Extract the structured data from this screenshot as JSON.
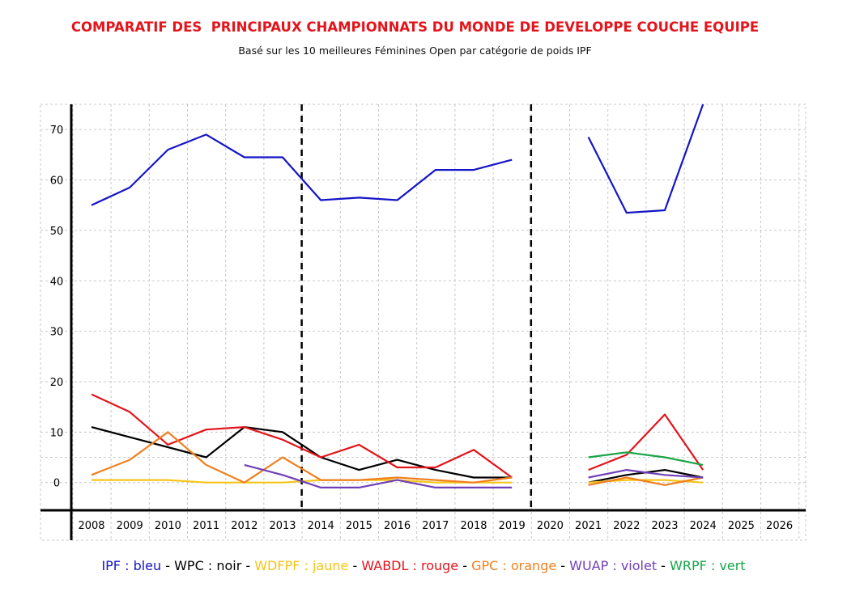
{
  "chart_data": {
    "type": "line",
    "title": "COMPARATIF DES  PRINCIPAUX CHAMPIONNATS DU MONDE DE DEVELOPPE COUCHE EQUIPE",
    "subtitle": "Basé sur les 10 meilleures Féminines Open par catégorie de poids IPF",
    "categories": [
      "2008",
      "2009",
      "2010",
      "2011",
      "2012",
      "2013",
      "2014",
      "2015",
      "2016",
      "2017",
      "2018",
      "2019",
      "2020",
      "2021",
      "2022",
      "2023",
      "2024",
      "2025",
      "2026"
    ],
    "y_ticks": [
      0,
      10,
      20,
      30,
      40,
      50,
      60,
      70
    ],
    "ylim": [
      -5.5,
      75
    ],
    "grid": true,
    "dashed_separators_after": [
      "2013",
      "2019"
    ],
    "series": [
      {
        "name": "IPF",
        "color": "#1515c8",
        "values": [
          55,
          58.5,
          66,
          69,
          64.5,
          64.5,
          56,
          56.5,
          56,
          62,
          62,
          64,
          null,
          68.5,
          53.5,
          54,
          75.5,
          null,
          null
        ]
      },
      {
        "name": "WPC",
        "color": "#000000",
        "values": [
          11,
          9,
          7,
          5,
          11,
          10,
          5,
          2.5,
          4.5,
          2.5,
          1,
          1,
          null,
          0,
          1.5,
          2.5,
          1,
          null,
          null
        ]
      },
      {
        "name": "WDFPF",
        "color": "#f5c518",
        "values": [
          0.5,
          0.5,
          0.5,
          0,
          0,
          0,
          0.5,
          0.5,
          0.5,
          0,
          0,
          0,
          null,
          0,
          0.5,
          0.5,
          0,
          null,
          null
        ]
      },
      {
        "name": "WABDL",
        "color": "#e3141b",
        "values": [
          17.5,
          14,
          7.5,
          10.5,
          11,
          8.5,
          5,
          7.5,
          3,
          3,
          6.5,
          1,
          null,
          2.5,
          5.5,
          13.5,
          2.5,
          null,
          null
        ]
      },
      {
        "name": "GPC",
        "color": "#f07f1e",
        "values": [
          1.5,
          4.5,
          10,
          3.5,
          0,
          5,
          0.5,
          0.5,
          1,
          0.5,
          0,
          1,
          null,
          -0.5,
          1,
          -0.5,
          1,
          null,
          null
        ]
      },
      {
        "name": "WUAP",
        "color": "#7040b8",
        "values": [
          null,
          null,
          null,
          null,
          3.5,
          1.5,
          -1,
          -1,
          0.5,
          -1,
          -1,
          -1,
          null,
          1,
          2.5,
          1.5,
          1,
          null,
          null
        ]
      },
      {
        "name": "WRPF",
        "color": "#1aa548",
        "values": [
          null,
          null,
          null,
          null,
          null,
          null,
          null,
          null,
          null,
          null,
          null,
          null,
          null,
          5,
          6,
          5,
          3.5,
          null,
          null
        ]
      }
    ]
  },
  "legend": {
    "items": [
      {
        "label": "IPF : bleu",
        "color": "#1515c8"
      },
      {
        "label": "WPC : noir",
        "color": "#000000"
      },
      {
        "label": "WDFPF : jaune",
        "color": "#f5c518"
      },
      {
        "label": "WABDL : rouge",
        "color": "#e3141b"
      },
      {
        "label": "GPC : orange",
        "color": "#f07f1e"
      },
      {
        "label": "WUAP : violet",
        "color": "#7040b8"
      },
      {
        "label": "WRPF : vert",
        "color": "#1aa548"
      }
    ],
    "separator": " - "
  }
}
